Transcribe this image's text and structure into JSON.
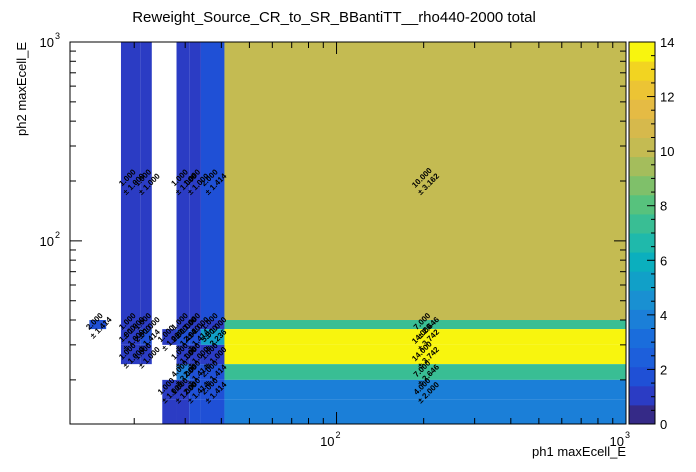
{
  "chart_data": {
    "type": "heatmap",
    "title": "Reweight_Source_CR_to_SR_BBantiTT__rho440-2000 total",
    "xlabel": "ph1 maxEcell_E",
    "ylabel": "ph2 maxEcell_E",
    "x_scale": "log",
    "y_scale": "log",
    "xlim": [
      12,
      1000
    ],
    "ylim": [
      12,
      1000
    ],
    "x_tick_labels": [
      {
        "value": 100,
        "base": "10",
        "exp": "2"
      },
      {
        "value": 1000,
        "base": "10",
        "exp": "3"
      }
    ],
    "y_tick_labels": [
      {
        "value": 100,
        "base": "10",
        "exp": "2"
      },
      {
        "value": 1000,
        "base": "10",
        "exp": "3"
      }
    ],
    "x_bin_edges": [
      12,
      14,
      16,
      18,
      21,
      23,
      25,
      28,
      31,
      34,
      41,
      1000
    ],
    "y_bin_edges": [
      12,
      16,
      20,
      24,
      30,
      36,
      40,
      1000
    ],
    "colorbar": {
      "min": 0,
      "max": 14,
      "tick_values": [
        0,
        2,
        4,
        6,
        8,
        10,
        12,
        14
      ],
      "tick_labels": [
        "0",
        "2",
        "4",
        "6",
        "8",
        "10",
        "12",
        "14"
      ]
    },
    "cells": [
      {
        "ix": 3,
        "iy": 6,
        "value": 1.0,
        "label": "1.000",
        "error": "± 1.000"
      },
      {
        "ix": 4,
        "iy": 6,
        "value": 1.0,
        "label": "1.000",
        "error": "± 1.000"
      },
      {
        "ix": 7,
        "iy": 6,
        "value": 1.0,
        "label": "1.000",
        "error": "± 1.000"
      },
      {
        "ix": 8,
        "iy": 6,
        "value": 1.0,
        "label": "1.000",
        "error": "± 1.000"
      },
      {
        "ix": 9,
        "iy": 6,
        "value": 2.0,
        "label": "2.000",
        "error": "± 1.414"
      },
      {
        "ix": 10,
        "iy": 6,
        "value": 10.0,
        "label": "10.000",
        "error": "± 3.162"
      },
      {
        "ix": 1,
        "iy": 5,
        "value": 2.0,
        "label": "2.000",
        "error": "± 1.414"
      },
      {
        "ix": 3,
        "iy": 5,
        "value": 1.0,
        "label": "1.000",
        "error": "± 1.000"
      },
      {
        "ix": 4,
        "iy": 5,
        "value": 1.0,
        "label": "1.000",
        "error": "± 1.000"
      },
      {
        "ix": 7,
        "iy": 5,
        "value": 1.0,
        "label": "1.000",
        "error": "± 1.000"
      },
      {
        "ix": 8,
        "iy": 5,
        "value": 1.0,
        "label": "1.000",
        "error": "± 1.000"
      },
      {
        "ix": 9,
        "iy": 5,
        "value": 1.0,
        "label": "1.000",
        "error": "± 1.000"
      },
      {
        "ix": 10,
        "iy": 5,
        "value": 7.0,
        "label": "7.000",
        "error": "± 2.646"
      },
      {
        "ix": 3,
        "iy": 4,
        "value": 1.0,
        "label": "1.000",
        "error": "± 1.000"
      },
      {
        "ix": 4,
        "iy": 4,
        "value": 2.0,
        "label": "2.000",
        "error": "± 1.414"
      },
      {
        "ix": 6,
        "iy": 4,
        "value": 1.0,
        "label": "1.000",
        "error": "± 1.000"
      },
      {
        "ix": 7,
        "iy": 4,
        "value": 2.0,
        "label": "2.000",
        "error": "± 1.414"
      },
      {
        "ix": 8,
        "iy": 4,
        "value": 2.0,
        "label": "2.000",
        "error": "± 1.414"
      },
      {
        "ix": 9,
        "iy": 4,
        "value": 5.0,
        "label": "5.000",
        "error": "± 2.236"
      },
      {
        "ix": 10,
        "iy": 4,
        "value": 14.0,
        "label": "14.000",
        "error": "± 3.742"
      },
      {
        "ix": 3,
        "iy": 3,
        "value": 1.0,
        "label": "1.000",
        "error": "± 1.000"
      },
      {
        "ix": 4,
        "iy": 3,
        "value": 1.0,
        "label": "1.000",
        "error": "± 1.000"
      },
      {
        "ix": 7,
        "iy": 3,
        "value": 1.0,
        "label": "1.000",
        "error": "± 1.000"
      },
      {
        "ix": 8,
        "iy": 3,
        "value": 1.0,
        "label": "1.000",
        "error": "± 1.000"
      },
      {
        "ix": 9,
        "iy": 3,
        "value": 1.0,
        "label": "1.000",
        "error": "± 1.000"
      },
      {
        "ix": 10,
        "iy": 3,
        "value": 14.0,
        "label": "14.000",
        "error": "± 3.742"
      },
      {
        "ix": 7,
        "iy": 2,
        "value": 4.0,
        "label": "4.000",
        "error": "± 2.000"
      },
      {
        "ix": 8,
        "iy": 2,
        "value": 2.0,
        "label": "2.000",
        "error": "± 1.414"
      },
      {
        "ix": 9,
        "iy": 2,
        "value": 2.0,
        "label": "2.000",
        "error": "± 1.414"
      },
      {
        "ix": 10,
        "iy": 2,
        "value": 7.0,
        "label": "7.000",
        "error": "± 2.646"
      },
      {
        "ix": 6,
        "iy": 1,
        "value": 1.0,
        "label": "1.000",
        "error": "± 1.000"
      },
      {
        "ix": 7,
        "iy": 1,
        "value": 1.0,
        "label": "1.000",
        "error": "± 1.000"
      },
      {
        "ix": 8,
        "iy": 1,
        "value": 2.0,
        "label": "2.000",
        "error": "± 1.414"
      },
      {
        "ix": 9,
        "iy": 1,
        "value": 2.0,
        "label": "2.000",
        "error": "± 1.414"
      },
      {
        "ix": 10,
        "iy": 1,
        "value": 4.0,
        "label": "4.000",
        "error": "± 2.000"
      },
      {
        "ix": 6,
        "iy": 0,
        "value": 1.0
      },
      {
        "ix": 7,
        "iy": 0,
        "value": 1.0
      },
      {
        "ix": 8,
        "iy": 0,
        "value": 2.0
      },
      {
        "ix": 9,
        "iy": 0,
        "value": 2.0
      },
      {
        "ix": 10,
        "iy": 0,
        "value": 4.0
      }
    ]
  }
}
